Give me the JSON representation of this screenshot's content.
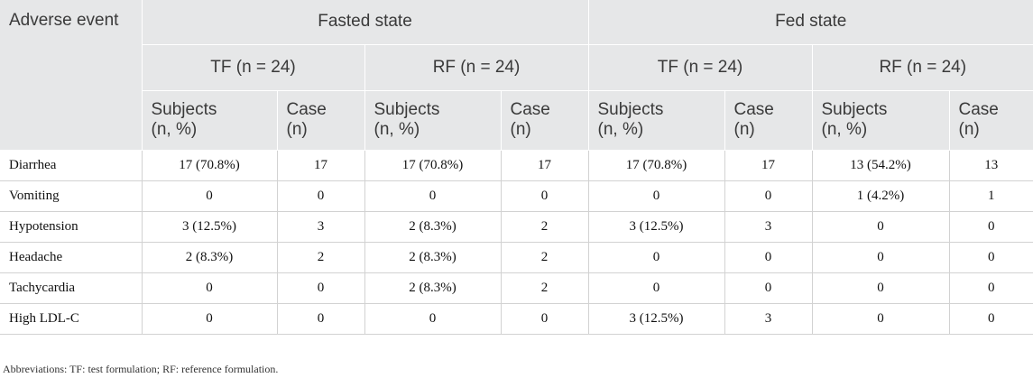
{
  "table": {
    "header": {
      "adverse_event": "Adverse event",
      "groups": [
        "Fasted state",
        "Fed state"
      ],
      "formulations": [
        "TF (n = 24)",
        "RF (n = 24)",
        "TF (n = 24)",
        "RF (n = 24)"
      ],
      "subjects_label_1": "Subjects",
      "subjects_label_2": "(n, %)",
      "case_label_1": "Case",
      "case_label_2": "(n)"
    },
    "rows": [
      {
        "event": "Diarrhea",
        "cells": [
          "17 (70.8%)",
          "17",
          "17 (70.8%)",
          "17",
          "17 (70.8%)",
          "17",
          "13 (54.2%)",
          "13"
        ]
      },
      {
        "event": "Vomiting",
        "cells": [
          "0",
          "0",
          "0",
          "0",
          "0",
          "0",
          "1 (4.2%)",
          "1"
        ]
      },
      {
        "event": "Hypotension",
        "cells": [
          "3 (12.5%)",
          "3",
          "2 (8.3%)",
          "2",
          "3 (12.5%)",
          "3",
          "0",
          "0"
        ]
      },
      {
        "event": "Headache",
        "cells": [
          "2 (8.3%)",
          "2",
          "2 (8.3%)",
          "2",
          "0",
          "0",
          "0",
          "0"
        ]
      },
      {
        "event": "Tachycardia",
        "cells": [
          "0",
          "0",
          "2 (8.3%)",
          "2",
          "0",
          "0",
          "0",
          "0"
        ]
      },
      {
        "event": "High LDL-C",
        "cells": [
          "0",
          "0",
          "0",
          "0",
          "3 (12.5%)",
          "3",
          "0",
          "0"
        ]
      }
    ]
  },
  "footnote": "Abbreviations: TF: test formulation; RF: reference formulation."
}
